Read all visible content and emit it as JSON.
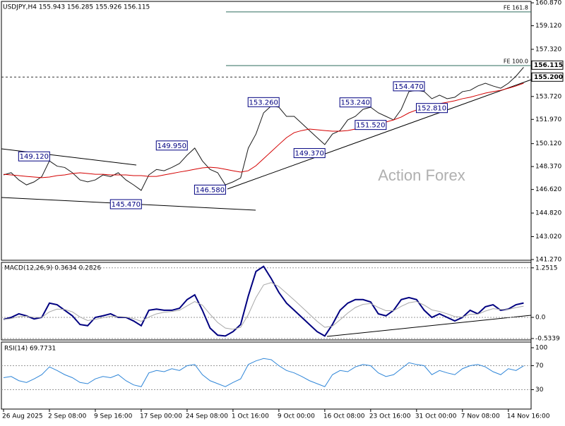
{
  "chart_data": [
    {
      "type": "line",
      "title": "USDJPY,H4  155.943 156.285 155.926 156.115",
      "watermark": "Action Forex",
      "categories": [
        "26 Aug 2025",
        null,
        null,
        null,
        null,
        null,
        "2 Sep 08:00",
        null,
        null,
        null,
        null,
        null,
        "9 Sep 16:00",
        null,
        null,
        null,
        null,
        null,
        "17 Sep 00:00",
        null,
        null,
        null,
        null,
        null,
        "24 Sep 08:00",
        null,
        null,
        null,
        null,
        null,
        "1 Oct 16:00",
        null,
        null,
        null,
        null,
        null,
        "9 Oct 00:00",
        null,
        null,
        null,
        null,
        null,
        "16 Oct 08:00",
        null,
        null,
        null,
        null,
        null,
        "23 Oct 16:00",
        null,
        null,
        null,
        null,
        null,
        "31 Oct 00:00",
        null,
        null,
        null,
        null,
        null,
        "7 Nov 08:00",
        null,
        null,
        null,
        null,
        null,
        "14 Nov 16:00",
        null,
        null
      ],
      "series": [
        {
          "name": "USDJPY",
          "color": "#1a1a1a",
          "values": [
            147.73,
            147.9,
            147.35,
            146.97,
            147.2,
            147.6,
            148.8,
            148.4,
            148.3,
            147.9,
            147.35,
            147.2,
            147.35,
            147.73,
            147.6,
            147.9,
            147.35,
            146.97,
            146.55,
            147.73,
            148.15,
            148.05,
            148.3,
            148.6,
            149.24,
            149.78,
            148.8,
            148.15,
            147.9,
            146.97,
            147.2,
            147.5,
            149.78,
            150.85,
            152.47,
            153.0,
            152.9,
            152.2,
            152.2,
            151.66,
            151.12,
            150.58,
            150.05,
            150.85,
            151.12,
            151.93,
            152.2,
            152.74,
            152.9,
            152.47,
            152.2,
            151.93,
            152.74,
            154.09,
            154.19,
            154.09,
            153.55,
            153.82,
            153.55,
            153.66,
            154.09,
            154.19,
            154.52,
            154.73,
            154.52,
            154.35,
            154.73,
            155.27,
            155.95
          ]
        },
        {
          "name": "MA",
          "color": "#d40000",
          "values": [
            147.78,
            147.73,
            147.68,
            147.62,
            147.57,
            147.52,
            147.57,
            147.68,
            147.73,
            147.84,
            147.89,
            147.84,
            147.78,
            147.78,
            147.73,
            147.73,
            147.73,
            147.68,
            147.68,
            147.62,
            147.62,
            147.73,
            147.84,
            147.95,
            148.05,
            148.16,
            148.27,
            148.32,
            148.27,
            148.16,
            148.05,
            147.95,
            148.05,
            148.43,
            148.97,
            149.51,
            150.05,
            150.58,
            150.96,
            151.12,
            151.23,
            151.18,
            151.12,
            151.07,
            151.07,
            151.12,
            151.23,
            151.39,
            151.5,
            151.61,
            151.77,
            151.93,
            152.15,
            152.47,
            152.69,
            152.9,
            153.01,
            153.17,
            153.28,
            153.39,
            153.55,
            153.66,
            153.82,
            153.98,
            154.09,
            154.19,
            154.35,
            154.52,
            154.73
          ]
        }
      ],
      "ylim": [
        141.27,
        160.87
      ],
      "yticks": [
        {
          "value": 141.27,
          "label": "141.270"
        },
        {
          "value": 143.02,
          "label": "143.020"
        },
        {
          "value": 144.82,
          "label": "144.820"
        },
        {
          "value": 146.62,
          "label": "146.620"
        },
        {
          "value": 148.37,
          "label": "148.370"
        },
        {
          "value": 150.12,
          "label": "150.120"
        },
        {
          "value": 151.97,
          "label": "151.970"
        },
        {
          "value": 153.72,
          "label": "153.720"
        },
        {
          "value": 157.32,
          "label": "157.320"
        },
        {
          "value": 159.12,
          "label": "159.120"
        },
        {
          "value": 160.87,
          "label": "160.870"
        }
      ],
      "annotations": [
        {
          "text": "149.120",
          "value": 149.12,
          "at": 4
        },
        {
          "text": "145.470",
          "value": 145.47,
          "at": 16
        },
        {
          "text": "149.950",
          "value": 149.95,
          "at": 22
        },
        {
          "text": "146.580",
          "value": 146.58,
          "at": 27
        },
        {
          "text": "153.260",
          "value": 153.26,
          "at": 34
        },
        {
          "text": "149.370",
          "value": 149.37,
          "at": 40
        },
        {
          "text": "153.240",
          "value": 153.24,
          "at": 46
        },
        {
          "text": "151.520",
          "value": 151.52,
          "at": 48
        },
        {
          "text": "154.470",
          "value": 154.47,
          "at": 53
        },
        {
          "text": "152.810",
          "value": 152.81,
          "at": 56
        }
      ],
      "levels": [
        {
          "label": "FE 161.8",
          "value": 160.18
        },
        {
          "label": "FE 100.0",
          "value": 156.08
        }
      ],
      "price_tags": [
        {
          "label": "156.115",
          "value": 156.115
        },
        {
          "label": "155.200",
          "value": 155.2
        }
      ]
    },
    {
      "type": "line",
      "title": "MACD(12,26,9) 0.3634 0.2826",
      "grid": true,
      "series": [
        {
          "name": "MACD",
          "color": "#000080",
          "values": [
            -0.05,
            0,
            0.09,
            0.04,
            -0.04,
            0,
            0.36,
            0.32,
            0.18,
            0.04,
            -0.18,
            -0.21,
            0,
            0.04,
            0.09,
            0,
            0,
            -0.09,
            -0.21,
            0.18,
            0.21,
            0.18,
            0.18,
            0.23,
            0.45,
            0.57,
            0.18,
            -0.27,
            -0.45,
            -0.47,
            -0.36,
            -0.18,
            0.54,
            1.16,
            1.29,
            0.98,
            0.63,
            0.36,
            0.18,
            0,
            -0.18,
            -0.36,
            -0.47,
            -0.18,
            0.18,
            0.36,
            0.45,
            0.45,
            0.39,
            0.09,
            0.04,
            0.18,
            0.45,
            0.5,
            0.45,
            0.18,
            0,
            0.09,
            0,
            -0.09,
            0,
            0.18,
            0.09,
            0.27,
            0.32,
            0.18,
            0.21,
            0.32,
            0.3634
          ]
        },
        {
          "name": "Signal",
          "color": "#a8a8a8",
          "values": [
            -0.05,
            -0.03,
            0.02,
            0.03,
            0,
            0,
            0.14,
            0.21,
            0.2,
            0.14,
            0.01,
            -0.08,
            -0.05,
            -0.01,
            0.03,
            0.02,
            0.01,
            -0.03,
            -0.1,
            0.01,
            0.09,
            0.13,
            0.15,
            0.18,
            0.29,
            0.4,
            0.31,
            0.08,
            -0.13,
            -0.27,
            -0.3,
            -0.25,
            0.07,
            0.5,
            0.82,
            0.88,
            0.78,
            0.61,
            0.44,
            0.26,
            0.08,
            -0.1,
            -0.25,
            -0.22,
            -0.06,
            0.11,
            0.25,
            0.33,
            0.35,
            0.25,
            0.17,
            0.17,
            0.28,
            0.37,
            0.4,
            0.31,
            0.19,
            0.15,
            0.09,
            0.02,
            0.01,
            0.08,
            0.08,
            0.16,
            0.22,
            0.2,
            0.2,
            0.25,
            0.2826
          ]
        }
      ],
      "ylim": [
        -0.57,
        1.39
      ],
      "yticks": [
        1.2515,
        {
          "value": 0,
          "label": "0.0"
        },
        -0.5339
      ]
    },
    {
      "type": "line",
      "title": "RSI(14) 69.7731",
      "grid": true,
      "series": [
        {
          "name": "RSI",
          "color": "#2f86d8",
          "values": [
            50,
            52,
            45,
            42,
            48,
            55,
            68,
            62,
            55,
            50,
            42,
            40,
            48,
            52,
            50,
            55,
            45,
            38,
            35,
            58,
            62,
            60,
            65,
            62,
            70,
            72,
            55,
            45,
            40,
            35,
            42,
            48,
            72,
            78,
            82,
            80,
            70,
            62,
            58,
            52,
            45,
            40,
            35,
            55,
            62,
            60,
            68,
            72,
            70,
            58,
            52,
            55,
            65,
            75,
            72,
            70,
            55,
            62,
            58,
            55,
            65,
            70,
            72,
            68,
            60,
            55,
            65,
            62,
            69.7731
          ]
        }
      ],
      "ylim": [
        0,
        100
      ],
      "yticks": [
        100,
        70,
        30
      ]
    }
  ]
}
